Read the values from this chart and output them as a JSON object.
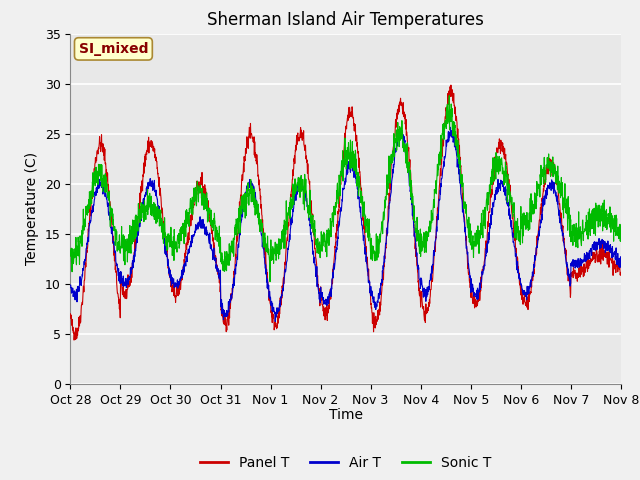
{
  "title": "Sherman Island Air Temperatures",
  "xlabel": "Time",
  "ylabel": "Temperature (C)",
  "xlim_start": 0,
  "xlim_end": 11,
  "ylim": [
    0,
    35
  ],
  "yticks": [
    0,
    5,
    10,
    15,
    20,
    25,
    30,
    35
  ],
  "xtick_labels": [
    "Oct 28",
    "Oct 29",
    "Oct 30",
    "Oct 31",
    "Nov 1",
    "Nov 2",
    "Nov 3",
    "Nov 4",
    "Nov 5",
    "Nov 6",
    "Nov 7",
    "Nov 8"
  ],
  "panel_color": "#cc0000",
  "air_color": "#0000cc",
  "sonic_color": "#00bb00",
  "fig_bg": "#f0f0f0",
  "plot_bg": "#e8e8e8",
  "grid_color": "#ffffff",
  "annotation_text": "SI_mixed",
  "annotation_bg": "#ffffcc",
  "annotation_border": "#aa8833",
  "annotation_text_color": "#880000",
  "title_fontsize": 12,
  "axis_fontsize": 10,
  "tick_fontsize": 9,
  "legend_fontsize": 10,
  "panel_daily_min": [
    5,
    9,
    9,
    6,
    6,
    7,
    6,
    7,
    8,
    8,
    11
  ],
  "panel_daily_max": [
    24,
    24,
    20,
    25,
    25,
    27,
    28,
    29,
    24,
    22,
    13
  ],
  "air_daily_min": [
    9,
    10,
    10,
    7,
    7,
    8,
    8,
    9,
    9,
    9,
    12
  ],
  "air_daily_max": [
    20,
    20,
    16,
    20,
    20,
    22,
    25,
    25,
    20,
    20,
    14
  ],
  "sonic_daily_min": [
    13,
    14,
    14,
    12,
    13,
    14,
    13,
    14,
    14,
    16,
    15
  ],
  "sonic_daily_max": [
    21,
    18,
    19,
    19,
    20,
    23,
    25,
    27,
    22,
    22,
    17
  ]
}
